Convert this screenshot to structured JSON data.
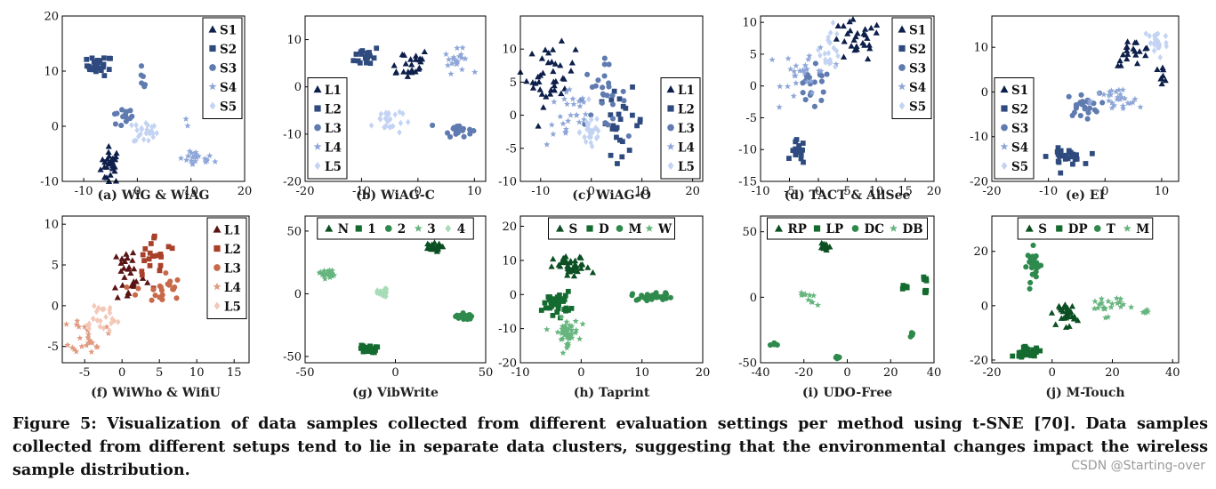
{
  "figure": {
    "caption": "Figure 5: Visualization of data samples collected from different evaluation settings per method using t-SNE  [70]. Data samples collected from different setups tend to lie in separate data clusters, suggesting that the environmental changes impact the wireless sample distribution.",
    "watermark": "CSDN @Starting-over"
  },
  "chart_data": [
    {
      "type": "scatter",
      "caption": "(a) WiG & WiAG",
      "xlim": [
        -14,
        20
      ],
      "ylim": [
        -10,
        20
      ],
      "xticks": [
        -10,
        0,
        10,
        20
      ],
      "yticks": [
        -10,
        0,
        10,
        20
      ],
      "legend": "right-vertical",
      "series": [
        {
          "name": "S1",
          "color": "#0d1f4a",
          "marker": "triangle",
          "clusters": [
            [
              -5,
              -7,
              1.2,
              2.2,
              30
            ]
          ]
        },
        {
          "name": "S2",
          "color": "#2e4a7e",
          "marker": "square",
          "clusters": [
            [
              -7,
              11,
              1.6,
              1.2,
              25
            ]
          ]
        },
        {
          "name": "S3",
          "color": "#5f7bb0",
          "marker": "circle",
          "clusters": [
            [
              -3,
              1.5,
              1.5,
              1.2,
              14
            ],
            [
              1,
              8.5,
              0.5,
              1.3,
              6
            ]
          ]
        },
        {
          "name": "S4",
          "color": "#8ea6d8",
          "marker": "star",
          "clusters": [
            [
              11,
              -6,
              2.2,
              1.0,
              22
            ],
            [
              9.5,
              0.5,
              0.5,
              0.5,
              2
            ]
          ]
        },
        {
          "name": "S5",
          "color": "#c3d3f3",
          "marker": "diamond",
          "clusters": [
            [
              1.5,
              -1,
              1.5,
              1.5,
              25
            ]
          ]
        }
      ]
    },
    {
      "type": "scatter",
      "caption": "(b) WiAG-C",
      "xlim": [
        -20,
        12
      ],
      "ylim": [
        -20,
        15
      ],
      "xticks": [
        -20,
        -10,
        0,
        10
      ],
      "yticks": [
        -20,
        -10,
        0,
        10
      ],
      "legend": "left-vertical",
      "series": [
        {
          "name": "L1",
          "color": "#0d1f4a",
          "marker": "triangle",
          "clusters": [
            [
              -2,
              5,
              2.8,
              2.2,
              24
            ]
          ]
        },
        {
          "name": "L2",
          "color": "#2e4a7e",
          "marker": "square",
          "clusters": [
            [
              -9,
              6.5,
              1.5,
              1.5,
              20
            ]
          ]
        },
        {
          "name": "L3",
          "color": "#5f7bb0",
          "marker": "circle",
          "clusters": [
            [
              7,
              -9,
              1.7,
              1.0,
              20
            ]
          ]
        },
        {
          "name": "L4",
          "color": "#8ea6d8",
          "marker": "star",
          "clusters": [
            [
              7,
              5.5,
              1.5,
              1.6,
              20
            ]
          ]
        },
        {
          "name": "L5",
          "color": "#c3d3f3",
          "marker": "diamond",
          "clusters": [
            [
              -5.5,
              -7,
              1.8,
              2.2,
              25
            ]
          ]
        }
      ]
    },
    {
      "type": "scatter",
      "caption": "(c) WiAG-O",
      "xlim": [
        -14,
        22
      ],
      "ylim": [
        -10,
        15
      ],
      "xticks": [
        -10,
        0,
        10,
        20
      ],
      "yticks": [
        -10,
        -5,
        0,
        5,
        10
      ],
      "legend": "right-vertical",
      "series": [
        {
          "name": "L1",
          "color": "#0d1f4a",
          "marker": "triangle",
          "clusters": [
            [
              -8,
              6,
              3.2,
              3.0,
              38
            ]
          ]
        },
        {
          "name": "L2",
          "color": "#2e4a7e",
          "marker": "square",
          "clusters": [
            [
              6,
              -1,
              3.0,
              3.2,
              26
            ]
          ]
        },
        {
          "name": "L3",
          "color": "#5f7bb0",
          "marker": "circle",
          "clusters": [
            [
              2,
              3,
              3.2,
              3.2,
              26
            ]
          ]
        },
        {
          "name": "L4",
          "color": "#8ea6d8",
          "marker": "star",
          "clusters": [
            [
              -4,
              0,
              3.2,
              3.2,
              26
            ]
          ]
        },
        {
          "name": "L5",
          "color": "#c3d3f3",
          "marker": "diamond",
          "clusters": [
            [
              0,
              -2.5,
              1.5,
              2.0,
              30
            ]
          ]
        }
      ]
    },
    {
      "type": "scatter",
      "caption": "(d) TACT & AllSee",
      "xlim": [
        -10,
        20
      ],
      "ylim": [
        -15,
        11
      ],
      "xticks": [
        -10,
        -5,
        0,
        5,
        10,
        15,
        20
      ],
      "yticks": [
        -15,
        -10,
        -5,
        0,
        5,
        10
      ],
      "legend": "right-vertical",
      "series": [
        {
          "name": "S1",
          "color": "#0d1f4a",
          "marker": "triangle",
          "clusters": [
            [
              6.5,
              7,
              3.0,
              2.2,
              28
            ]
          ]
        },
        {
          "name": "S2",
          "color": "#2e4a7e",
          "marker": "square",
          "clusters": [
            [
              -3.5,
              -10.5,
              0.8,
              1.3,
              16
            ]
          ]
        },
        {
          "name": "S3",
          "color": "#5f7bb0",
          "marker": "circle",
          "clusters": [
            [
              -1,
              -0.5,
              2.2,
              2.2,
              20
            ]
          ]
        },
        {
          "name": "S4",
          "color": "#8ea6d8",
          "marker": "star",
          "clusters": [
            [
              -2,
              2,
              2.8,
              2.8,
              28
            ]
          ]
        },
        {
          "name": "S5",
          "color": "#c3d3f3",
          "marker": "diamond",
          "clusters": [
            [
              2,
              6,
              1.2,
              2.2,
              22
            ]
          ]
        }
      ]
    },
    {
      "type": "scatter",
      "caption": "(e) EI",
      "xlim": [
        -20,
        13
      ],
      "ylim": [
        -20,
        17
      ],
      "xticks": [
        -20,
        -10,
        0,
        10
      ],
      "yticks": [
        -20,
        -10,
        0,
        10
      ],
      "legend": "left-vertical",
      "series": [
        {
          "name": "S1",
          "color": "#0d1f4a",
          "marker": "triangle",
          "clusters": [
            [
              5,
              9,
              2.2,
              2.0,
              20
            ],
            [
              10,
              4,
              0.8,
              1.2,
              8
            ]
          ]
        },
        {
          "name": "S2",
          "color": "#2e4a7e",
          "marker": "square",
          "clusters": [
            [
              -7,
              -14.5,
              2.0,
              1.2,
              28
            ]
          ]
        },
        {
          "name": "S3",
          "color": "#5f7bb0",
          "marker": "circle",
          "clusters": [
            [
              -4,
              -3,
              2.0,
              1.8,
              24
            ]
          ]
        },
        {
          "name": "S4",
          "color": "#8ea6d8",
          "marker": "star",
          "clusters": [
            [
              2,
              -2,
              3.0,
              2.0,
              28
            ]
          ]
        },
        {
          "name": "S5",
          "color": "#c3d3f3",
          "marker": "diamond",
          "clusters": [
            [
              9,
              11,
              1.4,
              2.4,
              24
            ]
          ]
        }
      ]
    },
    {
      "type": "scatter",
      "caption": "(f) WiWho & WifiU",
      "xlim": [
        -8,
        17
      ],
      "ylim": [
        -7,
        11
      ],
      "xticks": [
        -5,
        0,
        5,
        10,
        15
      ],
      "yticks": [
        -5,
        0,
        5,
        10
      ],
      "legend": "right-vertical",
      "series": [
        {
          "name": "L1",
          "color": "#5a1414",
          "marker": "triangle",
          "clusters": [
            [
              1,
              4,
              1.5,
              2.5,
              30
            ]
          ]
        },
        {
          "name": "L2",
          "color": "#a8402a",
          "marker": "square",
          "clusters": [
            [
              4.5,
              6,
              2.0,
              1.8,
              22
            ]
          ]
        },
        {
          "name": "L3",
          "color": "#c86a4a",
          "marker": "circle",
          "clusters": [
            [
              5,
              2,
              2.0,
              1.5,
              22
            ]
          ]
        },
        {
          "name": "L4",
          "color": "#e09a80",
          "marker": "star",
          "clusters": [
            [
              -4.5,
              -3.5,
              1.5,
              1.5,
              26
            ]
          ]
        },
        {
          "name": "L5",
          "color": "#f4c8b8",
          "marker": "diamond",
          "clusters": [
            [
              -3,
              -1.5,
              1.8,
              1.5,
              24
            ]
          ]
        }
      ]
    },
    {
      "type": "scatter",
      "caption": "(g) VibWrite",
      "xlim": [
        -50,
        50
      ],
      "ylim": [
        -55,
        62
      ],
      "xticks": [
        -50,
        0,
        50
      ],
      "yticks": [
        -50,
        0,
        50
      ],
      "legend": "top-horizontal",
      "series": [
        {
          "name": "N",
          "color": "#0b4f22",
          "marker": "triangle",
          "clusters": [
            [
              20,
              37,
              3.5,
              2.2,
              24
            ]
          ]
        },
        {
          "name": "1",
          "color": "#146b30",
          "marker": "square",
          "clusters": [
            [
              -15,
              -44,
              3.0,
              2.0,
              24
            ]
          ]
        },
        {
          "name": "2",
          "color": "#2e8a4c",
          "marker": "circle",
          "clusters": [
            [
              38,
              -18,
              3.2,
              2.0,
              18
            ]
          ]
        },
        {
          "name": "3",
          "color": "#66b57e",
          "marker": "star",
          "clusters": [
            [
              -38,
              16,
              2.8,
              2.5,
              22
            ]
          ]
        },
        {
          "name": "4",
          "color": "#a8dcb8",
          "marker": "diamond",
          "clusters": [
            [
              -7,
              0,
              2.0,
              2.5,
              20
            ]
          ]
        }
      ]
    },
    {
      "type": "scatter",
      "caption": "(h) Taprint",
      "xlim": [
        -10,
        20
      ],
      "ylim": [
        -20,
        23
      ],
      "xticks": [
        -10,
        0,
        10,
        20
      ],
      "yticks": [
        -20,
        -10,
        0,
        10,
        20
      ],
      "legend": "top-horizontal",
      "series": [
        {
          "name": "S",
          "color": "#0b4f22",
          "marker": "triangle",
          "clusters": [
            [
              -1.5,
              8,
              2.0,
              2.2,
              38
            ]
          ]
        },
        {
          "name": "D",
          "color": "#146b30",
          "marker": "square",
          "clusters": [
            [
              -4,
              -2.5,
              1.5,
              2.2,
              40
            ]
          ]
        },
        {
          "name": "M",
          "color": "#2e8a4c",
          "marker": "circle",
          "clusters": [
            [
              12,
              -0.5,
              2.5,
              0.8,
              24
            ]
          ]
        },
        {
          "name": "W",
          "color": "#66b57e",
          "marker": "star",
          "clusters": [
            [
              -2.5,
              -11,
              1.4,
              2.6,
              45
            ]
          ]
        }
      ]
    },
    {
      "type": "scatter",
      "caption": "(i) UDO-Free",
      "xlim": [
        -40,
        40
      ],
      "ylim": [
        -50,
        62
      ],
      "xticks": [
        -40,
        -20,
        0,
        20,
        40
      ],
      "yticks": [
        -50,
        0,
        50
      ],
      "legend": "top-horizontal",
      "series": [
        {
          "name": "RP",
          "color": "#0b4f22",
          "marker": "triangle",
          "clusters": [
            [
              -10,
              38,
              1.5,
              2.0,
              14
            ]
          ]
        },
        {
          "name": "LP",
          "color": "#146b30",
          "marker": "square",
          "clusters": [
            [
              26,
              8,
              1.2,
              0.8,
              8
            ],
            [
              36,
              14,
              0.6,
              1.2,
              6
            ],
            [
              36,
              4,
              0.5,
              1.0,
              6
            ]
          ]
        },
        {
          "name": "DC",
          "color": "#2e8a4c",
          "marker": "circle",
          "clusters": [
            [
              -33,
              -36,
              1.5,
              1.2,
              6
            ],
            [
              -4,
              -46,
              1.0,
              0.8,
              6
            ],
            [
              30,
              -28,
              0.8,
              1.0,
              6
            ]
          ]
        },
        {
          "name": "DB",
          "color": "#66b57e",
          "marker": "star",
          "clusters": [
            [
              -17,
              -2,
              4.0,
              3.5,
              10
            ]
          ]
        }
      ]
    },
    {
      "type": "scatter",
      "caption": "(j) M-Touch",
      "xlim": [
        -20,
        42
      ],
      "ylim": [
        -21,
        33
      ],
      "xticks": [
        -20,
        0,
        20,
        40
      ],
      "yticks": [
        -20,
        0,
        20
      ],
      "legend": "top-horizontal",
      "series": [
        {
          "name": "S",
          "color": "#0b4f22",
          "marker": "triangle",
          "clusters": [
            [
              5,
              -3,
              1.8,
              3.0,
              30
            ]
          ]
        },
        {
          "name": "DP",
          "color": "#146b30",
          "marker": "square",
          "clusters": [
            [
              -8,
              -17,
              3.2,
              1.2,
              30
            ]
          ]
        },
        {
          "name": "T",
          "color": "#2e8a4c",
          "marker": "circle",
          "clusters": [
            [
              -6,
              15,
              1.5,
              4.0,
              26
            ]
          ]
        },
        {
          "name": "M",
          "color": "#66b57e",
          "marker": "star",
          "clusters": [
            [
              18,
              0,
              4.0,
              2.5,
              24
            ],
            [
              31,
              -2,
              1.0,
              0.6,
              5
            ]
          ]
        }
      ]
    }
  ]
}
